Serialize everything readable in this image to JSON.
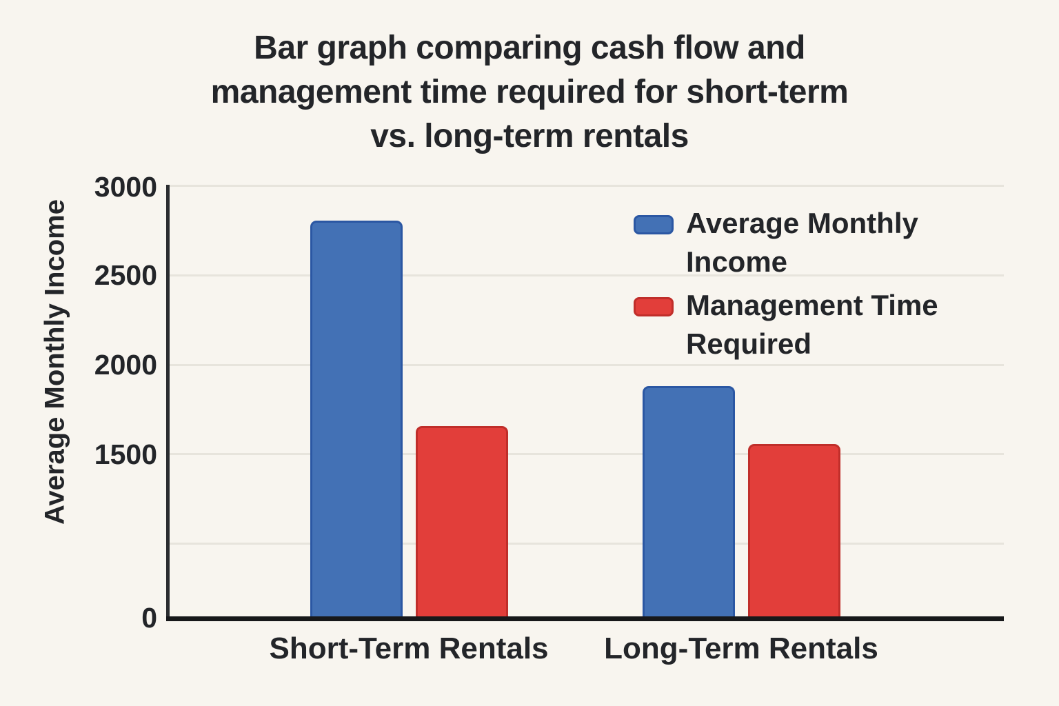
{
  "page": {
    "background_color": "#f8f5ef",
    "text_color": "#232529"
  },
  "chart_data": {
    "type": "bar",
    "title": "Bar graph comparing cash flow and management time required for short-term vs. long-term rentals",
    "title_lines": [
      "Bar graph comparing cash flow and",
      "management time required for short-term",
      "vs. long-term rentals"
    ],
    "categories": [
      "Short-Term Rentals",
      "Long-Term Rentals"
    ],
    "series": [
      {
        "name": "Average Monthly Income",
        "legend_lines": [
          "Average Monthly",
          "Income"
        ],
        "values": [
          2800,
          1875
        ],
        "color": "#4371b5",
        "border_color": "#2b57a3"
      },
      {
        "name": "Management Time Required",
        "legend_lines": [
          "Management Time",
          "Required"
        ],
        "values": [
          1650,
          1550
        ],
        "color": "#e23e3a",
        "border_color": "#c02e2a"
      }
    ],
    "xlabel": "",
    "ylabel": "Average Monthly Income",
    "ytick_labels": [
      "3000",
      "2500",
      "2000",
      "1500",
      "0"
    ],
    "ytick_values": [
      3000,
      2500,
      2000,
      1500,
      0
    ],
    "ylim": [
      0,
      3000
    ],
    "grid": true,
    "legend_position": "upper-right",
    "axis_color": "#1b1c1e",
    "gridline_color": "#e7e4dc"
  }
}
